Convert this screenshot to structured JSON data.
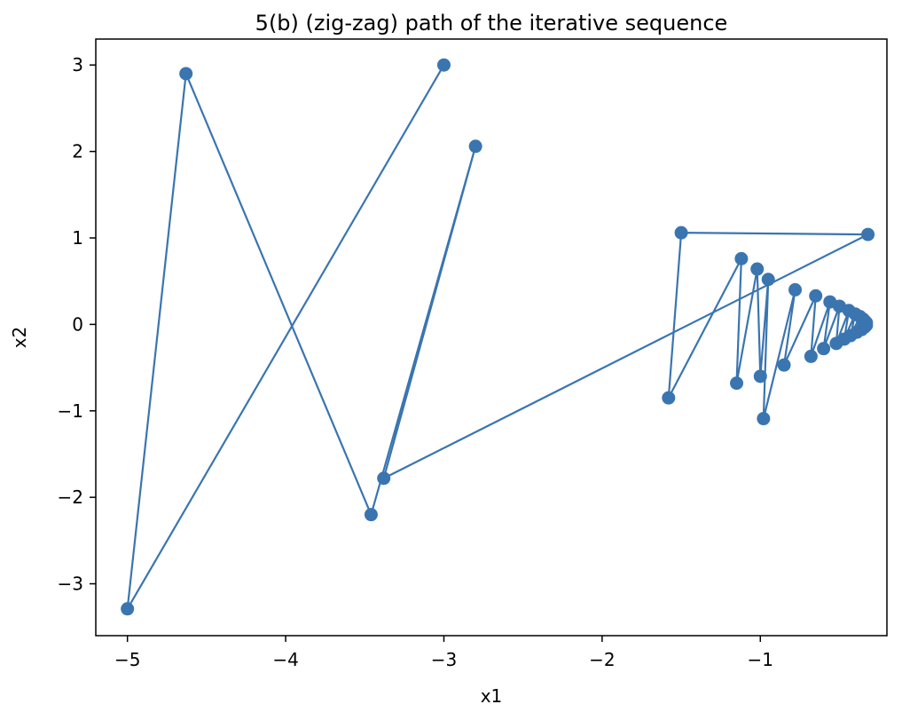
{
  "chart_data": {
    "type": "line",
    "title": "5(b) (zig-zag) path of the iterative sequence",
    "xlabel": "x1",
    "ylabel": "x2",
    "xlim": [
      -5.2,
      -0.2
    ],
    "ylim": [
      -3.6,
      3.3
    ],
    "x_ticks": [
      -5,
      -4,
      -3,
      -2,
      -1
    ],
    "y_ticks": [
      -3,
      -2,
      -1,
      0,
      1,
      2,
      3
    ],
    "x_tick_labels": [
      "−5",
      "−4",
      "−3",
      "−2",
      "−1"
    ],
    "y_tick_labels": [
      "−3",
      "−2",
      "−1",
      "0",
      "1",
      "2",
      "3"
    ],
    "grid": false,
    "marker": "circle",
    "series_color": "#3a75b0",
    "series": [
      {
        "points": [
          {
            "x": -3.0,
            "y": 3.0
          },
          {
            "x": -5.0,
            "y": -3.29
          },
          {
            "x": -4.63,
            "y": 2.9
          },
          {
            "x": -3.46,
            "y": -2.2
          },
          {
            "x": -2.8,
            "y": 2.06
          },
          {
            "x": -3.38,
            "y": -1.78
          },
          {
            "x": -0.32,
            "y": 1.04
          },
          {
            "x": -1.5,
            "y": 1.06
          },
          {
            "x": -1.58,
            "y": -0.85
          },
          {
            "x": -1.12,
            "y": 0.76
          },
          {
            "x": -1.15,
            "y": -0.68
          },
          {
            "x": -1.02,
            "y": 0.64
          },
          {
            "x": -1.0,
            "y": -0.6
          },
          {
            "x": -0.95,
            "y": 0.52
          },
          {
            "x": -0.98,
            "y": -1.09
          },
          {
            "x": -0.78,
            "y": 0.4
          },
          {
            "x": -0.85,
            "y": -0.47
          },
          {
            "x": -0.65,
            "y": 0.33
          },
          {
            "x": -0.68,
            "y": -0.37
          },
          {
            "x": -0.56,
            "y": 0.26
          },
          {
            "x": -0.6,
            "y": -0.28
          },
          {
            "x": -0.5,
            "y": 0.21
          },
          {
            "x": -0.52,
            "y": -0.22
          },
          {
            "x": -0.44,
            "y": 0.16
          },
          {
            "x": -0.47,
            "y": -0.17
          },
          {
            "x": -0.4,
            "y": 0.12
          },
          {
            "x": -0.43,
            "y": -0.13
          },
          {
            "x": -0.37,
            "y": 0.09
          },
          {
            "x": -0.39,
            "y": -0.09
          },
          {
            "x": -0.35,
            "y": 0.06
          },
          {
            "x": -0.36,
            "y": -0.06
          },
          {
            "x": -0.34,
            "y": 0.04
          },
          {
            "x": -0.34,
            "y": -0.03
          },
          {
            "x": -0.33,
            "y": 0.02
          },
          {
            "x": -0.33,
            "y": -0.01
          }
        ]
      }
    ]
  }
}
